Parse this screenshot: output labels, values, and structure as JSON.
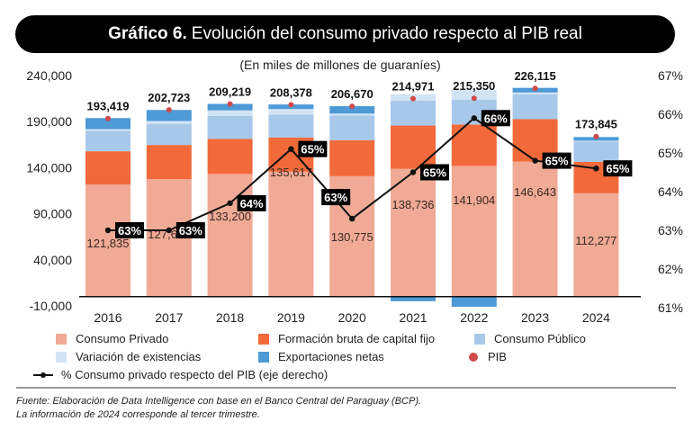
{
  "header": {
    "title_bold": "Gráfico 6.",
    "title_rest": "Evolución del consumo privado respecto al PIB real"
  },
  "chart_data": {
    "type": "bar",
    "stacked": true,
    "title": "Gráfico 6. Evolución del consumo privado respecto al PIB real",
    "subtitle": "(En miles de millones de guaraníes)",
    "categories": [
      "2016",
      "2017",
      "2018",
      "2019",
      "2020",
      "2021",
      "2022",
      "2023",
      "2024"
    ],
    "y_left": {
      "range": [
        -10000,
        240000
      ],
      "ticks": [
        240000,
        190000,
        140000,
        90000,
        40000,
        -10000
      ],
      "tick_labels": [
        "240,000",
        "190,000",
        "140,000",
        "90,000",
        "40,000",
        "-10,000"
      ]
    },
    "y_right": {
      "range": [
        61,
        67
      ],
      "ticks": [
        67,
        66,
        65,
        64,
        63,
        62,
        61
      ],
      "tick_labels": [
        "67%",
        "66%",
        "65%",
        "64%",
        "63%",
        "62%",
        "61%"
      ]
    },
    "series": [
      {
        "name": "Consumo Privado",
        "color": "#f0aa95",
        "values": [
          121835,
          127652,
          133200,
          135617,
          130775,
          138736,
          141904,
          146643,
          112277
        ],
        "labels": [
          "121,835",
          "127,652",
          "133,200",
          "135,617",
          "130,775",
          "138,736",
          "141,904",
          "146,643",
          "112,277"
        ]
      },
      {
        "name": "Formación bruta de capital fijo",
        "color": "#f26a3a",
        "values": [
          36000,
          37000,
          38000,
          37000,
          39000,
          47000,
          45000,
          46000,
          34000
        ]
      },
      {
        "name": "Consumo Público",
        "color": "#a8c8ea",
        "values": [
          22000,
          23000,
          25000,
          25000,
          27000,
          27000,
          27000,
          27000,
          22000
        ]
      },
      {
        "name": "Variación de existencias",
        "color": "#d3e3f6",
        "values": [
          2000,
          3000,
          6000,
          6000,
          2000,
          7000,
          11000,
          2000,
          1000
        ]
      },
      {
        "name": "Exportaciones netas",
        "color": "#4d9ad6",
        "values": [
          12000,
          12000,
          7000,
          5000,
          8000,
          -5000,
          -11000,
          5000,
          4000
        ]
      }
    ],
    "pib": {
      "name": "PIB",
      "color": "#d04a4a",
      "values": [
        193419,
        202723,
        209219,
        208378,
        206670,
        214971,
        215350,
        226115,
        173845
      ],
      "labels": [
        "193,419",
        "202,723",
        "209,219",
        "208,378",
        "206,670",
        "214,971",
        "215,350",
        "226,115",
        "173,845"
      ]
    },
    "line": {
      "name": "% Consumo privado respecto del PIB (eje derecho)",
      "axis": "right",
      "values": [
        63.0,
        63.0,
        63.7,
        65.1,
        63.3,
        64.5,
        65.9,
        64.8,
        64.6
      ],
      "labels": [
        "63%",
        "63%",
        "64%",
        "65%",
        "63%",
        "65%",
        "66%",
        "65%",
        "65%"
      ]
    },
    "legend_position": "bottom",
    "grid": false
  },
  "legend": {
    "items": [
      {
        "label": "Consumo Privado",
        "color": "#f0aa95",
        "shape": "square"
      },
      {
        "label": "Formación bruta de capital fijo",
        "color": "#f26a3a",
        "shape": "square"
      },
      {
        "label": "Consumo Público",
        "color": "#a8c8ea",
        "shape": "square"
      },
      {
        "label": "Variación de existencias",
        "color": "#d3e3f6",
        "shape": "square"
      },
      {
        "label": "Exportaciones netas",
        "color": "#4d9ad6",
        "shape": "square"
      },
      {
        "label": "PIB",
        "color": "#d04a4a",
        "shape": "circle"
      },
      {
        "label": "% Consumo privado respecto del PIB (eje derecho)",
        "color": "#111111",
        "shape": "line"
      }
    ]
  },
  "footer": {
    "source": "Fuente: Elaboración de Data Intelligence con base en el Banco Central del Paraguay (BCP).",
    "note": "La información de 2024 corresponde al tercer trimestre."
  }
}
